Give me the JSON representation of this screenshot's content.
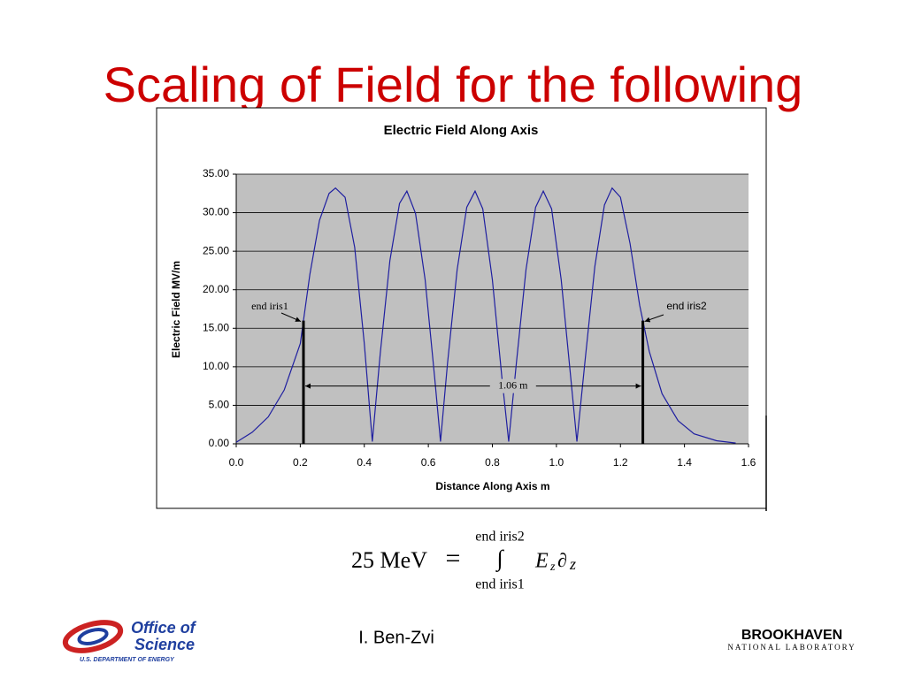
{
  "slide_title": "Scaling of Field for the following",
  "chart_data": {
    "type": "line",
    "title": "Electric Field Along Axis",
    "x_label": "Distance Along Axis  m",
    "y_label": "Electric Field  MV/m",
    "x": [
      0,
      0.05,
      0.1,
      0.15,
      0.2,
      0.23,
      0.26,
      0.29,
      0.31,
      0.34,
      0.37,
      0.4,
      0.425,
      0.45,
      0.48,
      0.51,
      0.533,
      0.56,
      0.59,
      0.62,
      0.638,
      0.66,
      0.69,
      0.72,
      0.746,
      0.77,
      0.8,
      0.83,
      0.851,
      0.875,
      0.905,
      0.935,
      0.959,
      0.985,
      1.015,
      1.045,
      1.064,
      1.09,
      1.12,
      1.15,
      1.174,
      1.2,
      1.23,
      1.26,
      1.29,
      1.33,
      1.38,
      1.43,
      1.5,
      1.56
    ],
    "values": [
      0.2,
      1.5,
      3.5,
      7,
      13,
      22,
      29,
      32.5,
      33.2,
      32,
      25.5,
      13,
      0.3,
      11.8,
      23.8,
      31.2,
      32.8,
      29.9,
      21.3,
      8.5,
      0.3,
      10.5,
      22.6,
      30.7,
      32.8,
      30.5,
      21.3,
      8.5,
      0.3,
      10.5,
      22.6,
      30.7,
      32.8,
      30.5,
      21.3,
      8.5,
      0.3,
      11,
      23,
      31,
      33.2,
      32,
      26,
      18,
      12,
      6.5,
      3,
      1.3,
      0.4,
      0.1
    ],
    "color": "#1f1fa0",
    "plot_background": "#c0c0c0",
    "grid": true,
    "xlim": [
      0,
      1.6
    ],
    "xticks": [
      {
        "value": 0,
        "label": "0.0"
      },
      0.2,
      0.4,
      0.6,
      0.8,
      {
        "value": 1,
        "label": "1.0"
      },
      1.2,
      1.4,
      1.6
    ],
    "ylim": [
      0,
      35
    ],
    "yticks": [
      {
        "value": 0,
        "label": "0.00"
      },
      {
        "value": 5,
        "label": "5.00"
      },
      {
        "value": 10,
        "label": "10.00"
      },
      {
        "value": 15,
        "label": "15.00"
      },
      {
        "value": 20,
        "label": "20.00"
      },
      {
        "value": 25,
        "label": "25.00"
      },
      {
        "value": 30,
        "label": "30.00"
      },
      {
        "value": 35,
        "label": "35.00"
      }
    ],
    "iris_lines": [
      {
        "x": 0.21,
        "y": 16
      },
      {
        "x": 1.27,
        "y": 16
      }
    ],
    "annotations": {
      "iris1": "end iris1",
      "iris2": "end iris2",
      "span": "1.06 m"
    }
  },
  "equation": {
    "lhs": "25 MeV",
    "equals": "=",
    "integral": "∫",
    "upper": "end iris2",
    "lower": "end iris1",
    "E": "E",
    "z_sub": "z",
    "partial": "∂",
    "z": "z"
  },
  "footer": {
    "doe_line1": "Office of",
    "doe_line2": "Science",
    "doe_line3": "U.S. DEPARTMENT OF ENERGY",
    "author": "I. Ben-Zvi",
    "bnl_line1": "BROOKHAVEN",
    "bnl_line2": "NATIONAL LABORATORY"
  }
}
